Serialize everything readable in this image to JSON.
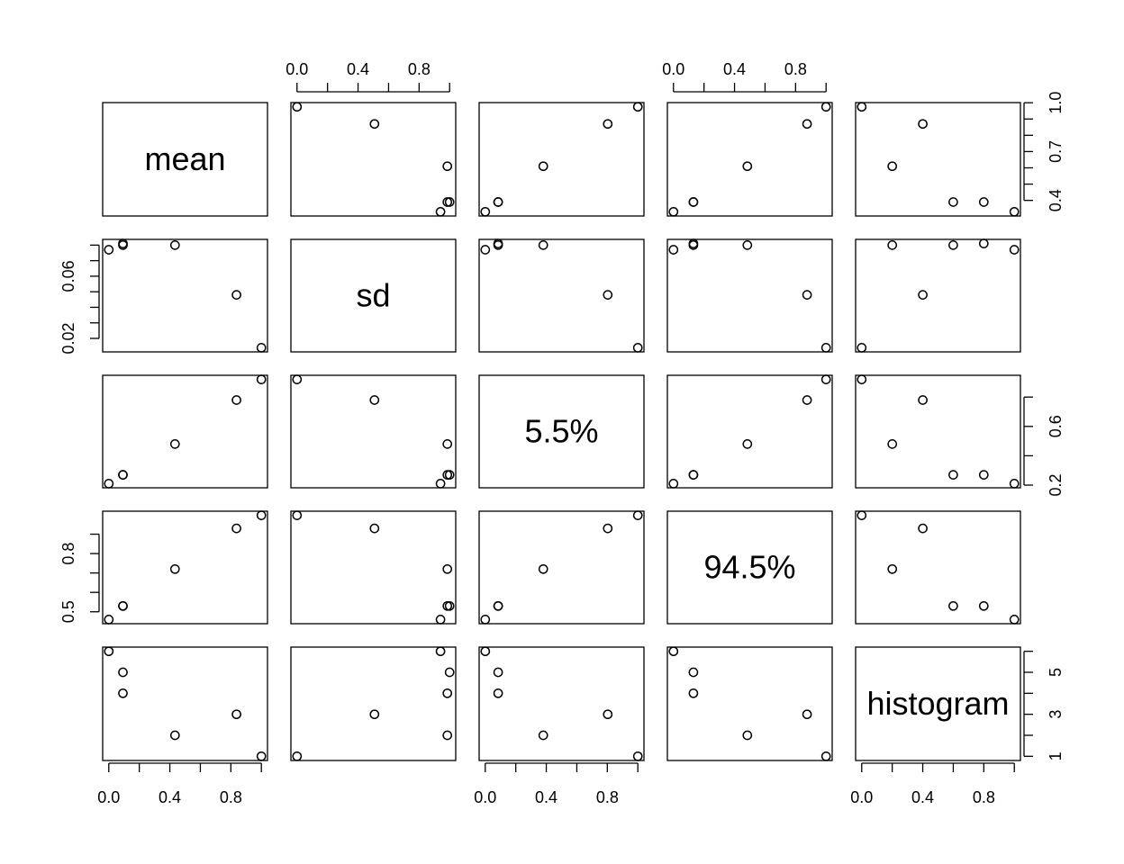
{
  "chart_data": {
    "type": "scatter",
    "variables": [
      "mean",
      "sd",
      "5.5%",
      "94.5%",
      "histogram"
    ],
    "rows": [
      {
        "mean": 0.975,
        "sd": 0.014,
        "5.5%": 0.92,
        "94.5%": 0.997,
        "histogram": 1
      },
      {
        "mean": 0.61,
        "sd": 0.08,
        "5.5%": 0.48,
        "94.5%": 0.72,
        "histogram": 2
      },
      {
        "mean": 0.87,
        "sd": 0.048,
        "5.5%": 0.78,
        "94.5%": 0.93,
        "histogram": 3
      },
      {
        "mean": 0.39,
        "sd": 0.08,
        "5.5%": 0.27,
        "94.5%": 0.53,
        "histogram": 4
      },
      {
        "mean": 0.39,
        "sd": 0.081,
        "5.5%": 0.27,
        "94.5%": 0.53,
        "histogram": 5
      },
      {
        "mean": 0.33,
        "sd": 0.077,
        "5.5%": 0.21,
        "94.5%": 0.46,
        "histogram": 6
      }
    ],
    "ranges": {
      "mean": [
        0.33,
        0.975
      ],
      "sd": [
        0.014,
        0.081
      ],
      "5.5%": [
        0.21,
        0.92
      ],
      "94.5%": [
        0.46,
        0.997
      ],
      "histogram": [
        1,
        6
      ]
    },
    "axes": {
      "top": [
        {
          "col": 1,
          "ticks": [
            0.0,
            0.2,
            0.4,
            0.6,
            0.8,
            1.0
          ],
          "labels": [
            "0.0",
            "",
            "0.4",
            "",
            "0.8",
            ""
          ]
        },
        {
          "col": 3,
          "ticks": [
            0.0,
            0.2,
            0.4,
            0.6,
            0.8,
            1.0
          ],
          "labels": [
            "0.0",
            "",
            "0.4",
            "",
            "0.8",
            ""
          ]
        }
      ],
      "bottom": [
        {
          "col": 0,
          "ticks": [
            0.0,
            0.2,
            0.4,
            0.6,
            0.8,
            1.0
          ],
          "labels": [
            "0.0",
            "",
            "0.4",
            "",
            "0.8",
            ""
          ]
        },
        {
          "col": 2,
          "ticks": [
            0.0,
            0.2,
            0.4,
            0.6,
            0.8,
            1.0
          ],
          "labels": [
            "0.0",
            "",
            "0.4",
            "",
            "0.8",
            ""
          ]
        },
        {
          "col": 4,
          "ticks": [
            0.0,
            0.2,
            0.4,
            0.6,
            0.8,
            1.0
          ],
          "labels": [
            "0.0",
            "",
            "0.4",
            "",
            "0.8",
            ""
          ]
        }
      ],
      "left": [
        {
          "row": 1,
          "ticks": [
            0.02,
            0.03,
            0.04,
            0.05,
            0.06,
            0.07,
            0.08
          ],
          "labels": [
            "0.02",
            "",
            "",
            "",
            "0.06",
            "",
            ""
          ]
        },
        {
          "row": 3,
          "ticks": [
            0.5,
            0.6,
            0.7,
            0.8,
            0.9
          ],
          "labels": [
            "0.5",
            "",
            "",
            "0.8",
            ""
          ]
        }
      ],
      "right": [
        {
          "row": 0,
          "ticks": [
            0.4,
            0.5,
            0.6,
            0.7,
            0.8,
            0.9,
            1.0
          ],
          "labels": [
            "0.4",
            "",
            "",
            "0.7",
            "",
            "",
            "1.0"
          ]
        },
        {
          "row": 2,
          "ticks": [
            0.2,
            0.4,
            0.6,
            0.8
          ],
          "labels": [
            "0.2",
            "",
            "0.6",
            ""
          ]
        },
        {
          "row": 4,
          "ticks": [
            1,
            2,
            3,
            4,
            5,
            6
          ],
          "labels": [
            "1",
            "",
            "3",
            "",
            "5",
            ""
          ]
        }
      ]
    },
    "grid": false,
    "legend": "none"
  }
}
